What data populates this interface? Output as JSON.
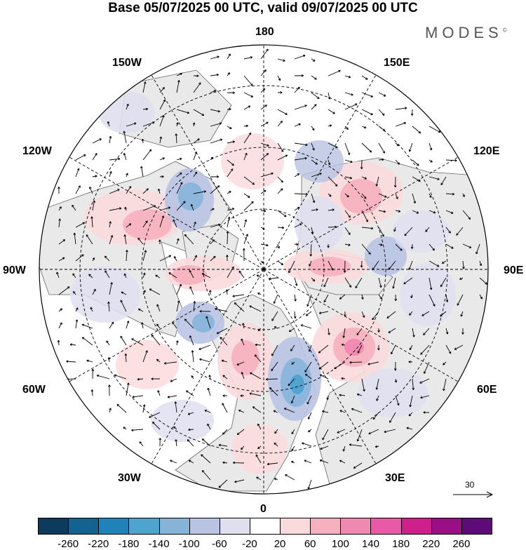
{
  "title": "Base 05/07/2025 00 UTC, valid 09/07/2025 00 UTC",
  "brand": {
    "name": "MODES",
    "mark": "©"
  },
  "longitude_labels": {
    "n180": "180",
    "w150": "150W",
    "e150": "150E",
    "w120": "120W",
    "e120": "120E",
    "w90": "90W",
    "e90": "90E",
    "w60": "60W",
    "e60": "60E",
    "w30": "30W",
    "e30": "30E",
    "zero": "0"
  },
  "reference_vector": {
    "label": "30"
  },
  "colorbar": {
    "colors": [
      "#0d3b5e",
      "#13628f",
      "#1f82b8",
      "#4ea3cf",
      "#86b4d9",
      "#b9c3e2",
      "#dfdff0",
      "#ffffff",
      "#fbdadd",
      "#f6b0bf",
      "#f089b2",
      "#e85aa5",
      "#cf1f8a",
      "#9a0e86",
      "#5e0a78"
    ],
    "ticks": [
      "-260",
      "-220",
      "-180",
      "-140",
      "-100",
      "-60",
      "-20",
      "20",
      "60",
      "100",
      "140",
      "180",
      "220",
      "260"
    ]
  }
}
